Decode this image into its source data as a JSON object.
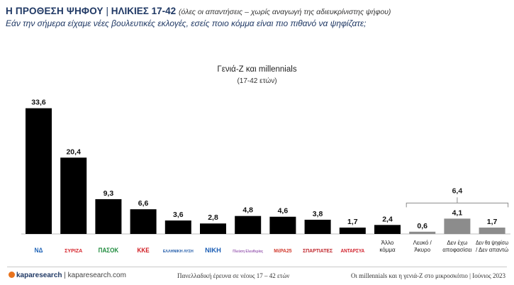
{
  "header": {
    "title": "Η ΠΡΟΘΕΣΗ ΨΗΦΟΥ",
    "separator": "|",
    "ages": "ΗΛΙΚΙΕΣ 17-42",
    "note": "(όλες οι απαντήσεις – χωρίς αναγωγή της αδιευκρίνιστης ψήφου)",
    "question": "Εάν την σήμερα είχαμε νέες βουλευτικές εκλογές, εσείς ποιο κόμμα είναι πιο πιθανό να ψηφίζατε;"
  },
  "chart_data": {
    "type": "bar",
    "title": "Γενιά-Ζ και millennials",
    "subtitle": "(17-42 ετών)",
    "categories": [
      "ΝΔ",
      "ΣΥΡΙΖΑ",
      "ΠΑΣΟΚ",
      "ΚΚΕ",
      "ΕΛΛΗΝΙΚΗ ΛΥΣΗ",
      "ΝΙΚΗ",
      "Πλεύση Ελευθερίας",
      "ΜέΡΑ25",
      "ΣΠΑΡΤΙΑΤΕΣ",
      "ΑΝΤΑΡΣΥΑ",
      "Άλλο κόμμα",
      "Λευκό / Άκυρο",
      "Δεν έχω αποφασίσει",
      "Δεν θα ψηφίσω / Δεν απαντώ"
    ],
    "values": [
      33.6,
      20.4,
      9.3,
      6.6,
      3.6,
      2.8,
      4.8,
      4.6,
      3.8,
      1.7,
      2.4,
      0.6,
      4.1,
      1.7
    ],
    "value_labels": [
      "33,6",
      "20,4",
      "9,3",
      "6,6",
      "3,6",
      "2,8",
      "4,8",
      "4,6",
      "3,8",
      "1,7",
      "2,4",
      "0,6",
      "4,1",
      "1,7"
    ],
    "bar_colors": [
      "#000000",
      "#000000",
      "#000000",
      "#000000",
      "#000000",
      "#000000",
      "#000000",
      "#000000",
      "#000000",
      "#000000",
      "#000000",
      "#8c8c8c",
      "#8c8c8c",
      "#8c8c8c"
    ],
    "ylim": [
      0,
      36
    ],
    "group_total": {
      "label": "6,4",
      "value": 6.4,
      "categories": [
        "Λευκό / Άκυρο",
        "Δεν έχω αποφασίσει",
        "Δεν θα ψηφίσω / Δεν απαντώ"
      ]
    },
    "text_labels": [
      {
        "index": 10,
        "lines": [
          "Άλλο",
          "κόμμα"
        ]
      },
      {
        "index": 11,
        "lines": [
          "Λευκό /",
          "Άκυρο"
        ]
      },
      {
        "index": 12,
        "lines": [
          "Δεν έχω",
          "αποφασίσει"
        ]
      },
      {
        "index": 13,
        "lines": [
          "Δεν θα ψηφίσω",
          "/ Δεν απαντώ"
        ]
      }
    ],
    "logos": [
      {
        "index": 0,
        "icon": "nd-logo-icon",
        "text": "ΝΔ",
        "color": "#1e63b7"
      },
      {
        "index": 1,
        "icon": "syriza-logo-icon",
        "text": "ΣΥΡΙΖΑ",
        "color": "#d7262d"
      },
      {
        "index": 2,
        "icon": "pasok-logo-icon",
        "text": "ΠΑΣΟΚ",
        "color": "#1c8a3b"
      },
      {
        "index": 3,
        "icon": "kke-logo-icon",
        "text": "ΚΚΕ",
        "color": "#d0191f"
      },
      {
        "index": 4,
        "icon": "elliniki-lysi-logo-icon",
        "text": "ΕΛΛΗΝΙΚΗ ΛΥΣΗ",
        "color": "#1f5aa8"
      },
      {
        "index": 5,
        "icon": "niki-logo-icon",
        "text": "ΝΙΚΗ",
        "color": "#1d5fb5"
      },
      {
        "index": 6,
        "icon": "plefsi-logo-icon",
        "text": "Πλεύση Ελευθερίας",
        "color": "#9b5fb3"
      },
      {
        "index": 7,
        "icon": "mera25-logo-icon",
        "text": "ΜέΡΑ25",
        "color": "#d23a2e"
      },
      {
        "index": 8,
        "icon": "spartiates-logo-icon",
        "text": "ΣΠΑΡΤΙΑΤΕΣ",
        "color": "#c0272d"
      },
      {
        "index": 9,
        "icon": "antarsya-logo-icon",
        "text": "ΑΝΤΑΡΣΥΑ",
        "color": "#d11f2a"
      }
    ]
  },
  "footer": {
    "brand": "kaparesearch",
    "brand_site": "kaparesearch.com",
    "center": "Πανελλαδική έρευνα σε νέους 17 – 42 ετών",
    "right": "Οι millennials και η γενιά-Ζ στο μικροσκόπιο | Ιούνιος 2023"
  }
}
